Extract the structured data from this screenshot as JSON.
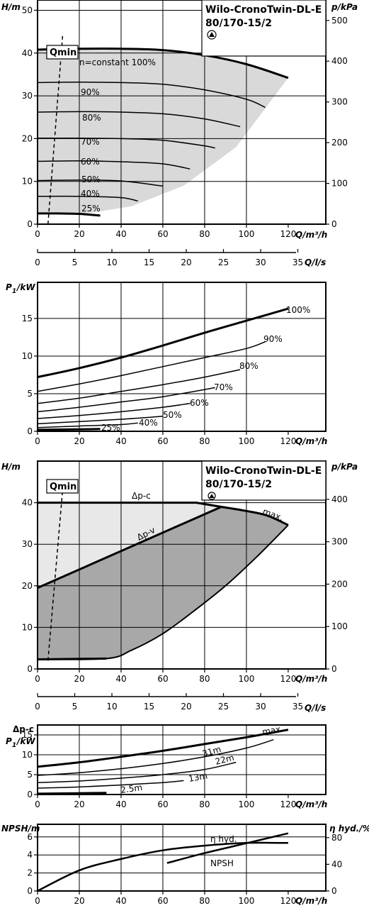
{
  "product_name": "Wilo-CronoTwin-DL-E",
  "product_model": "80/170-15/2",
  "chart_data": [
    {
      "type": "line",
      "xlabel": "Q/m³/h",
      "ylabel": "H/m",
      "y2label": "p/kPa",
      "xlim": [
        0,
        120
      ],
      "ylim": [
        0,
        50
      ],
      "xticks": [
        "0",
        "20",
        "40",
        "60",
        "80",
        "100",
        "120"
      ],
      "yticks": [
        "0",
        "10",
        "20",
        "30",
        "40",
        "50"
      ],
      "y2ticks": [
        "0",
        "100",
        "200",
        "300",
        "400",
        "500"
      ],
      "qmin_label": "Qmin",
      "operating_area_color": "#d9d9d9",
      "series": [
        {
          "name": "n=constant 100%",
          "x": [
            0,
            20,
            40,
            60,
            80,
            100,
            120
          ],
          "y": [
            40.8,
            41.0,
            41.0,
            40.7,
            39.5,
            37.4,
            34.2
          ]
        },
        {
          "name": "90%",
          "x": [
            0,
            20,
            40,
            60,
            80,
            100,
            109
          ],
          "y": [
            33.1,
            33.2,
            33.1,
            32.7,
            31.4,
            29.2,
            27.3
          ]
        },
        {
          "name": "80%",
          "x": [
            0,
            20,
            40,
            60,
            80,
            97
          ],
          "y": [
            26.2,
            26.3,
            26.2,
            25.8,
            24.6,
            22.8
          ]
        },
        {
          "name": "70%",
          "x": [
            0,
            20,
            40,
            60,
            80,
            85
          ],
          "y": [
            20.1,
            20.1,
            20.0,
            19.6,
            18.3,
            17.8
          ]
        },
        {
          "name": "60%",
          "x": [
            0,
            20,
            40,
            60,
            73
          ],
          "y": [
            14.7,
            14.8,
            14.6,
            14.1,
            12.9
          ]
        },
        {
          "name": "50%",
          "x": [
            0,
            20,
            40,
            60
          ],
          "y": [
            10.2,
            10.3,
            10.1,
            8.9
          ]
        },
        {
          "name": "40%",
          "x": [
            0,
            20,
            40,
            48
          ],
          "y": [
            6.5,
            6.5,
            6.2,
            5.4
          ]
        },
        {
          "name": "25%",
          "x": [
            0,
            10,
            20,
            30
          ],
          "y": [
            2.5,
            2.5,
            2.4,
            2.0
          ]
        }
      ],
      "qmin_line": {
        "x": [
          5,
          12
        ],
        "y": [
          0,
          44
        ]
      }
    },
    {
      "type": "axis",
      "xlabel": "Q/l/s",
      "xticks": [
        "0",
        "5",
        "10",
        "15",
        "20",
        "25",
        "30",
        "35"
      ]
    },
    {
      "type": "line",
      "xlabel": "Q/m³/h",
      "ylabel": "P1/kW",
      "xlim": [
        0,
        120
      ],
      "ylim": [
        0,
        18.5
      ],
      "xticks": [
        "0",
        "20",
        "40",
        "60",
        "80",
        "100",
        "120"
      ],
      "yticks": [
        "0",
        "5",
        "10",
        "15"
      ],
      "series": [
        {
          "name": "100%",
          "x": [
            0,
            20,
            40,
            60,
            80,
            100,
            120
          ],
          "y": [
            7.2,
            8.4,
            9.8,
            11.4,
            13.1,
            14.7,
            16.3
          ]
        },
        {
          "name": "90%",
          "x": [
            0,
            20,
            40,
            60,
            80,
            100,
            109
          ],
          "y": [
            5.3,
            6.3,
            7.4,
            8.6,
            9.8,
            11.0,
            11.9
          ]
        },
        {
          "name": "80%",
          "x": [
            0,
            20,
            40,
            60,
            80,
            97
          ],
          "y": [
            3.7,
            4.4,
            5.3,
            6.2,
            7.2,
            8.2
          ]
        },
        {
          "name": "70%",
          "x": [
            0,
            20,
            40,
            60,
            85
          ],
          "y": [
            2.6,
            3.2,
            3.9,
            4.6,
            5.8
          ]
        },
        {
          "name": "60%",
          "x": [
            0,
            20,
            40,
            60,
            73
          ],
          "y": [
            1.7,
            2.1,
            2.6,
            3.2,
            3.7
          ]
        },
        {
          "name": "50%",
          "x": [
            0,
            20,
            40,
            60
          ],
          "y": [
            1.0,
            1.3,
            1.6,
            2.0
          ]
        },
        {
          "name": "40%",
          "x": [
            0,
            20,
            40,
            48
          ],
          "y": [
            0.5,
            0.7,
            0.9,
            1.1
          ]
        },
        {
          "name": "25%",
          "x": [
            0,
            30
          ],
          "y": [
            0.2,
            0.3
          ]
        }
      ]
    },
    {
      "type": "area",
      "xlabel": "Q/m³/h",
      "ylabel": "H/m",
      "y2label": "p/kPa",
      "xlim": [
        0,
        120
      ],
      "ylim": [
        0,
        46
      ],
      "xticks": [
        "0",
        "20",
        "40",
        "60",
        "80",
        "100",
        "120"
      ],
      "yticks": [
        "0",
        "10",
        "20",
        "30",
        "40"
      ],
      "y2ticks": [
        "0",
        "100",
        "200",
        "300",
        "400"
      ],
      "qmin_label": "Qmin",
      "labels": {
        "dpc": "Δp-c",
        "dpv": "Δp-v",
        "max": "max."
      },
      "dpc_area_color": "#e8e8e8",
      "dpv_area_color": "#a8a8a8",
      "dpc_curve": {
        "x": [
          0,
          76,
          88
        ],
        "y": [
          40,
          40,
          39
        ]
      },
      "max_curve": {
        "x": [
          88,
          100,
          110,
          120
        ],
        "y": [
          39,
          38,
          36.9,
          34.6
        ]
      },
      "dpv_curve": {
        "x": [
          0,
          88
        ],
        "y": [
          19.5,
          39
        ]
      },
      "lower_curve": {
        "x": [
          120,
          105,
          90,
          75,
          60,
          45,
          33,
          0
        ],
        "y": [
          34.6,
          27,
          20,
          14,
          8.5,
          4.5,
          2.5,
          2.3
        ]
      },
      "qmin_line": {
        "x": [
          5,
          12
        ],
        "y": [
          2,
          43
        ]
      }
    },
    {
      "type": "axis",
      "xlabel": "Q/l/s",
      "xticks": [
        "0",
        "5",
        "10",
        "15",
        "20",
        "25",
        "30",
        "35"
      ]
    },
    {
      "type": "line",
      "xlabel": "Q/m³/h",
      "ylabel": "P1/kW",
      "ylabel_top": "Δp-c",
      "xlim": [
        0,
        120
      ],
      "ylim": [
        0,
        17.5
      ],
      "xticks": [
        "0",
        "20",
        "40",
        "60",
        "80",
        "100",
        "120"
      ],
      "yticks": [
        "0",
        "5",
        "10",
        "15"
      ],
      "series": [
        {
          "name": "max.",
          "x": [
            0,
            20,
            40,
            60,
            80,
            100,
            120
          ],
          "y": [
            7.0,
            8.1,
            9.5,
            11.0,
            12.7,
            14.4,
            16.3
          ]
        },
        {
          "name": "31m",
          "x": [
            0,
            20,
            40,
            60,
            80,
            100,
            113
          ],
          "y": [
            4.8,
            5.5,
            6.5,
            7.8,
            9.5,
            11.7,
            13.8
          ]
        },
        {
          "name": "22m",
          "x": [
            0,
            20,
            40,
            60,
            80,
            95
          ],
          "y": [
            3.0,
            3.4,
            4.1,
            5.0,
            6.3,
            8.1
          ]
        },
        {
          "name": "13m",
          "x": [
            0,
            20,
            40,
            60,
            70
          ],
          "y": [
            1.6,
            1.9,
            2.4,
            3.0,
            3.5
          ]
        },
        {
          "name": "2.5m",
          "x": [
            0,
            33
          ],
          "y": [
            0.2,
            0.4
          ]
        }
      ]
    },
    {
      "type": "line",
      "xlabel": "Q/m³/h",
      "ylabel": "NPSH/m",
      "y2label": "η hyd./%",
      "xlim": [
        0,
        120
      ],
      "ylim": [
        0,
        7.2
      ],
      "y2lim": [
        0,
        96
      ],
      "xticks": [
        "0",
        "20",
        "40",
        "60",
        "80",
        "100",
        "120"
      ],
      "yticks": [
        "0",
        "2",
        "4",
        "6"
      ],
      "y2ticks": [
        "0",
        "40",
        "80"
      ],
      "series": [
        {
          "name": "η hyd.",
          "axis": "right",
          "x": [
            0,
            20,
            40,
            60,
            80,
            100,
            120
          ],
          "y": [
            0,
            31,
            48,
            61,
            68,
            72,
            72
          ]
        },
        {
          "name": "NPSH",
          "axis": "left",
          "x": [
            62,
            80,
            100,
            120
          ],
          "y": [
            3.1,
            4.2,
            5.3,
            6.4
          ]
        }
      ]
    }
  ]
}
